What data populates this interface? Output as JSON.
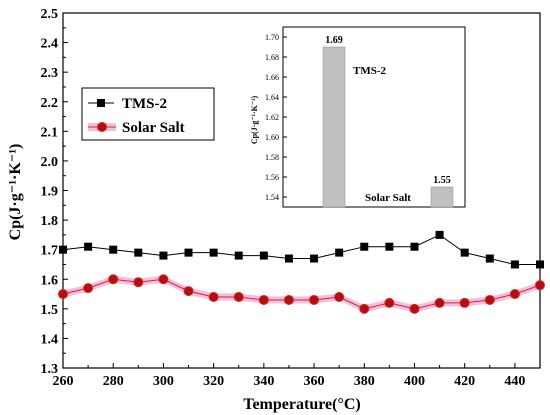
{
  "chart_data": [
    {
      "type": "line",
      "xlabel": "Temperature(°C)",
      "ylabel": "Cp(J·g⁻¹·K⁻¹)",
      "xlim": [
        260,
        450
      ],
      "ylim": [
        1.3,
        2.5
      ],
      "x_ticks": [
        "260",
        "280",
        "300",
        "320",
        "340",
        "360",
        "380",
        "400",
        "420",
        "440"
      ],
      "y_ticks": [
        "1.3",
        "1.4",
        "1.5",
        "1.6",
        "1.7",
        "1.8",
        "1.9",
        "2.0",
        "2.1",
        "2.2",
        "2.3",
        "2.4",
        "2.5"
      ],
      "grid": false,
      "legend_position": "upper-left",
      "x": [
        260,
        270,
        280,
        290,
        300,
        310,
        320,
        330,
        340,
        350,
        360,
        370,
        380,
        390,
        400,
        410,
        420,
        430,
        440,
        450
      ],
      "series": [
        {
          "name": "TMS-2",
          "marker": "square",
          "color": "#000000",
          "values": [
            1.7,
            1.71,
            1.7,
            1.69,
            1.68,
            1.69,
            1.69,
            1.68,
            1.68,
            1.67,
            1.67,
            1.69,
            1.71,
            1.71,
            1.71,
            1.75,
            1.69,
            1.67,
            1.65,
            1.65
          ]
        },
        {
          "name": "Solar Salt",
          "marker": "circle",
          "color": "#e02020",
          "fill": "#b01010",
          "band_color": "#f2bfe3",
          "values": [
            1.55,
            1.57,
            1.6,
            1.59,
            1.6,
            1.56,
            1.54,
            1.54,
            1.53,
            1.53,
            1.53,
            1.54,
            1.5,
            1.52,
            1.5,
            1.52,
            1.52,
            1.53,
            1.55,
            1.58
          ]
        }
      ]
    },
    {
      "type": "bar",
      "ylabel": "Cp(J·g⁻¹·K⁻¹)",
      "ylim": [
        1.53,
        1.71
      ],
      "y_ticks": [
        "1.54",
        "1.56",
        "1.58",
        "1.60",
        "1.62",
        "1.64",
        "1.66",
        "1.68",
        "1.70"
      ],
      "categories": [
        "TMS-2",
        "Solar Salt"
      ],
      "values": [
        1.69,
        1.55
      ],
      "data_labels": [
        "1.69",
        "1.55"
      ],
      "bar_color": "#c0c0c0"
    }
  ]
}
